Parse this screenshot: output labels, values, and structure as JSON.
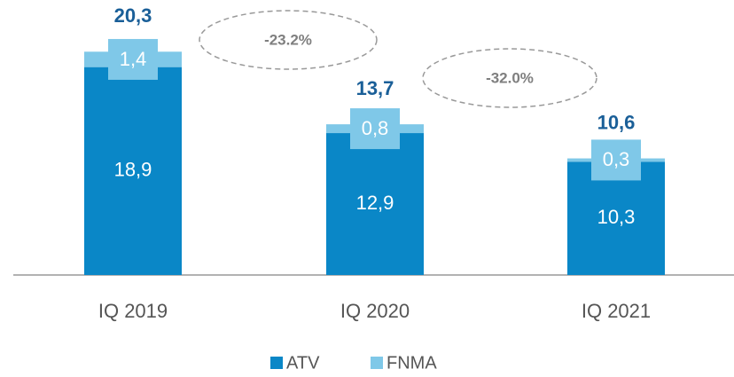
{
  "chart_data": {
    "type": "stacked_bar",
    "categories": [
      "IQ 2019",
      "IQ 2020",
      "IQ 2021"
    ],
    "series": [
      {
        "name": "ATV",
        "color": "#0a87c7",
        "values": [
          18.9,
          12.9,
          10.3
        ],
        "value_labels": [
          "18,9",
          "12,9",
          "10,3"
        ]
      },
      {
        "name": "FNMA",
        "color": "#7fc8e8",
        "values": [
          1.4,
          0.8,
          0.3
        ],
        "value_labels": [
          "1,4",
          "0,8",
          "0,3"
        ]
      }
    ],
    "totals": {
      "values": [
        20.3,
        13.7,
        10.6
      ],
      "value_labels": [
        "20,3",
        "13,7",
        "10,6"
      ]
    },
    "annotations": [
      "-23.2%",
      "-32.0%"
    ],
    "legend": "bottom"
  }
}
